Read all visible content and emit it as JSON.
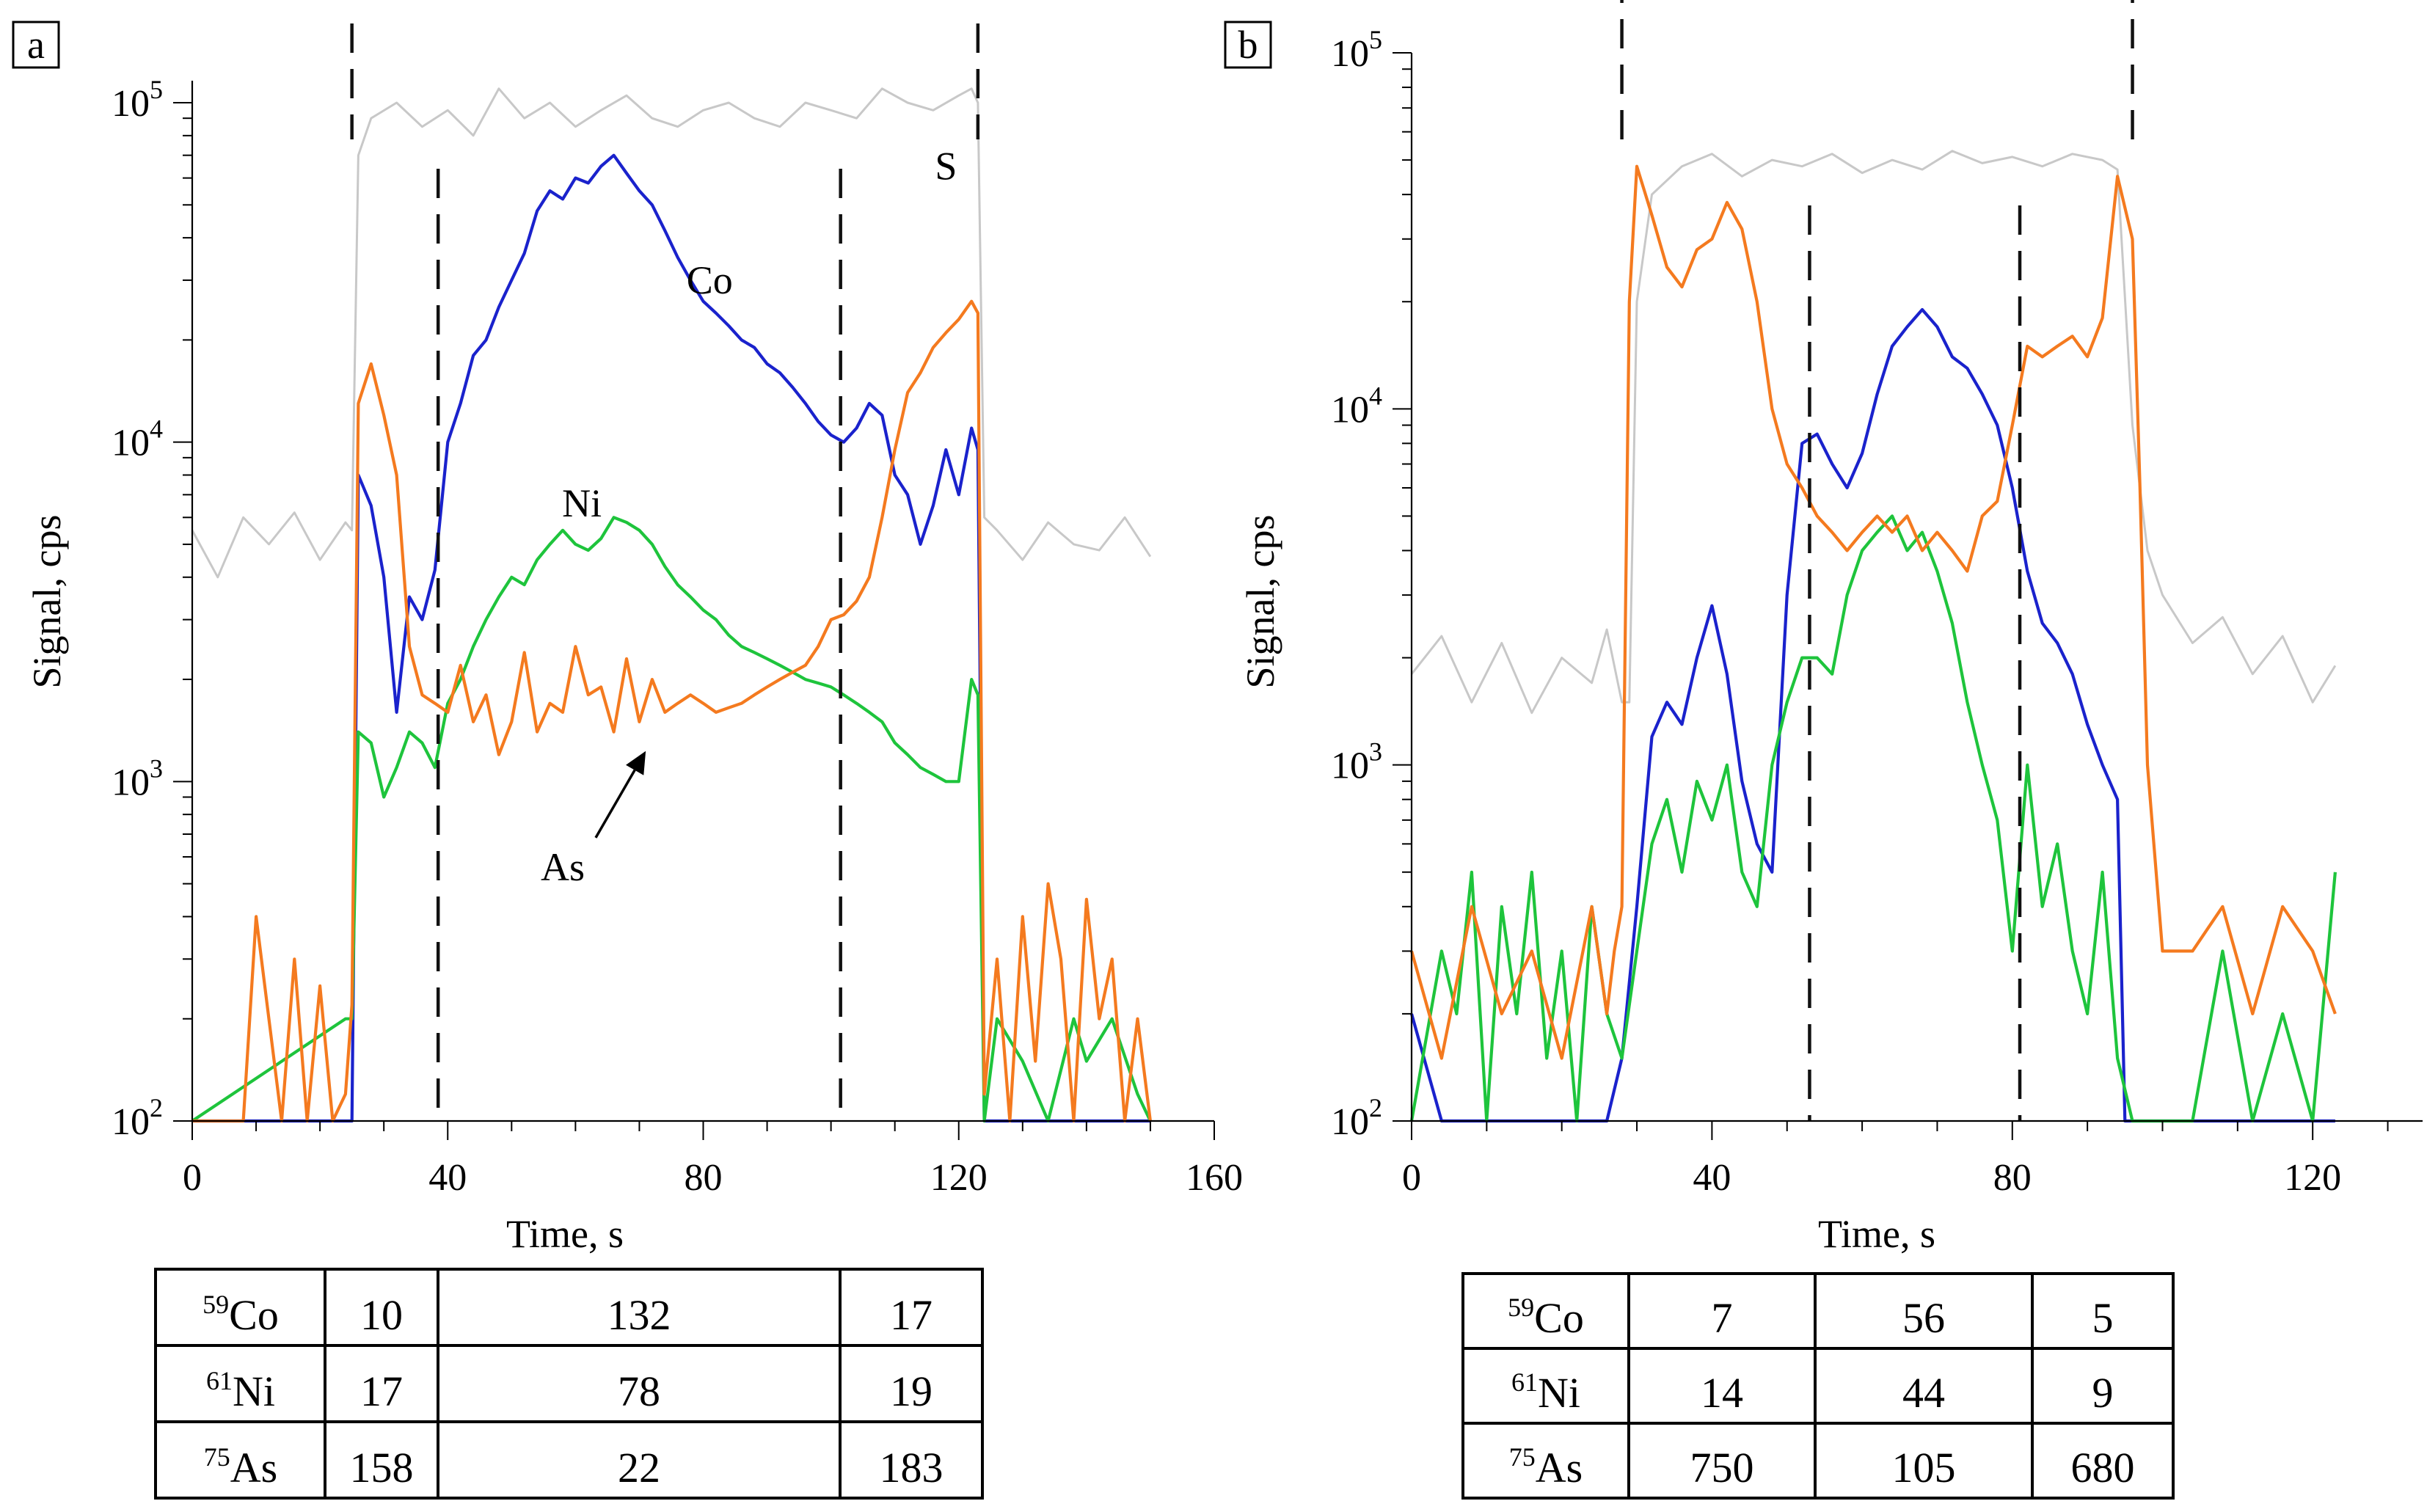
{
  "chart_data": [
    {
      "panel": "a",
      "type": "line",
      "xlabel": "Time, s",
      "ylabel": "Signal, cps",
      "yscale": "log",
      "xlim": [
        0,
        160
      ],
      "ylim": [
        100,
        100000
      ],
      "xticks": [
        0,
        40,
        80,
        120,
        160
      ],
      "xtick_labels": [
        "0",
        "40",
        "80",
        "120",
        "160"
      ],
      "yticks": [
        100,
        1000,
        10000,
        100000
      ],
      "ytick_bases": [
        "10",
        "10",
        "10",
        "10"
      ],
      "ytick_exps": [
        "2",
        "3",
        "4",
        "5"
      ],
      "markers_x": [
        25,
        38.5,
        101.5,
        123
      ],
      "annotations": [
        {
          "label": "S",
          "x": 118,
          "y": 65000
        },
        {
          "label": "Co",
          "x": 81,
          "y": 30000
        },
        {
          "label": "Ni",
          "x": 61,
          "y": 6600
        },
        {
          "label": "As",
          "x": 58,
          "y": 560,
          "arrow_to": [
            71,
            1230
          ]
        }
      ],
      "series": [
        {
          "name": "S",
          "color": "#c8c8c8",
          "x": [
            0,
            4,
            8,
            12,
            16,
            20,
            24,
            25,
            26,
            28,
            32,
            36,
            40,
            44,
            48,
            52,
            56,
            60,
            64,
            68,
            72,
            76,
            80,
            84,
            88,
            92,
            96,
            100,
            104,
            108,
            112,
            116,
            120,
            122,
            123,
            124,
            126,
            130,
            134,
            138,
            142,
            146,
            150
          ],
          "y": [
            5500,
            4000,
            6000,
            5000,
            6200,
            4500,
            5800,
            5500,
            70000,
            90000,
            100000,
            85000,
            95000,
            80000,
            110000,
            90000,
            100000,
            85000,
            95000,
            105000,
            90000,
            85000,
            95000,
            100000,
            90000,
            85000,
            100000,
            95000,
            90000,
            110000,
            100000,
            95000,
            105000,
            110000,
            100000,
            6000,
            5500,
            4500,
            5800,
            5000,
            4800,
            6000,
            4600
          ]
        },
        {
          "name": "Co",
          "color": "#1a22cc",
          "x": [
            0,
            24,
            25,
            26,
            28,
            30,
            32,
            34,
            36,
            38,
            40,
            42,
            44,
            46,
            48,
            50,
            52,
            54,
            56,
            58,
            60,
            62,
            64,
            66,
            68,
            70,
            72,
            74,
            76,
            78,
            80,
            82,
            84,
            86,
            88,
            90,
            92,
            94,
            96,
            98,
            100,
            102,
            104,
            106,
            108,
            110,
            112,
            114,
            116,
            118,
            120,
            122,
            123,
            124,
            126,
            150
          ],
          "y": [
            100,
            100,
            100,
            8000,
            6500,
            4000,
            1600,
            3500,
            3000,
            4200,
            10000,
            13000,
            18000,
            20000,
            25000,
            30000,
            36000,
            48000,
            55000,
            52000,
            60000,
            58000,
            65000,
            70000,
            62000,
            55000,
            50000,
            42000,
            35000,
            30000,
            26000,
            24000,
            22000,
            20000,
            19000,
            17000,
            16000,
            14500,
            13000,
            11500,
            10500,
            10000,
            11000,
            13000,
            12000,
            8000,
            7000,
            5000,
            6500,
            9500,
            7000,
            11000,
            9500,
            100,
            100,
            100
          ]
        },
        {
          "name": "Ni",
          "color": "#1ec43c",
          "x": [
            0,
            24,
            25,
            26,
            28,
            30,
            32,
            34,
            36,
            38,
            40,
            42,
            44,
            46,
            48,
            50,
            52,
            54,
            56,
            58,
            60,
            62,
            64,
            66,
            68,
            70,
            72,
            74,
            76,
            78,
            80,
            82,
            84,
            86,
            88,
            90,
            92,
            94,
            96,
            98,
            100,
            102,
            104,
            106,
            108,
            110,
            112,
            114,
            116,
            118,
            120,
            122,
            123,
            124,
            126,
            130,
            134,
            138,
            140,
            144,
            148,
            150
          ],
          "y": [
            100,
            200,
            200,
            1400,
            1300,
            900,
            1100,
            1400,
            1300,
            1100,
            1700,
            2000,
            2500,
            3000,
            3500,
            4000,
            3800,
            4500,
            5000,
            5500,
            5000,
            4800,
            5200,
            6000,
            5800,
            5500,
            5000,
            4300,
            3800,
            3500,
            3200,
            3000,
            2700,
            2500,
            2400,
            2300,
            2200,
            2100,
            2000,
            1950,
            1900,
            1800,
            1700,
            1600,
            1500,
            1300,
            1200,
            1100,
            1050,
            1000,
            1000,
            2000,
            1800,
            100,
            200,
            150,
            100,
            200,
            150,
            200,
            120,
            100
          ]
        },
        {
          "name": "As",
          "color": "#f47a1f",
          "x": [
            0,
            8,
            10,
            12,
            14,
            16,
            18,
            20,
            22,
            24,
            25,
            26,
            28,
            30,
            32,
            34,
            36,
            38,
            40,
            42,
            44,
            46,
            48,
            50,
            52,
            54,
            56,
            58,
            60,
            62,
            64,
            66,
            68,
            70,
            72,
            74,
            76,
            78,
            80,
            82,
            84,
            86,
            88,
            90,
            92,
            94,
            96,
            98,
            100,
            102,
            104,
            106,
            108,
            110,
            112,
            114,
            116,
            118,
            120,
            122,
            123,
            124,
            126,
            128,
            130,
            132,
            134,
            136,
            138,
            140,
            142,
            144,
            146,
            148,
            150
          ],
          "y": [
            100,
            100,
            400,
            200,
            100,
            300,
            100,
            250,
            100,
            120,
            220,
            13000,
            17000,
            12000,
            8000,
            2500,
            1800,
            1700,
            1600,
            2200,
            1500,
            1800,
            1200,
            1500,
            2400,
            1400,
            1700,
            1600,
            2500,
            1800,
            1900,
            1400,
            2300,
            1500,
            2000,
            1600,
            1700,
            1800,
            1700,
            1600,
            1650,
            1700,
            1800,
            1900,
            2000,
            2100,
            2200,
            2500,
            3000,
            3100,
            3400,
            4000,
            6000,
            9500,
            14000,
            16000,
            19000,
            21000,
            23000,
            26000,
            24000,
            120,
            300,
            100,
            400,
            150,
            500,
            300,
            100,
            450,
            200,
            300,
            100,
            200,
            100
          ]
        }
      ],
      "table": {
        "rows": [
          {
            "mass": "59",
            "element": "Co",
            "values": [
              "10",
              "132",
              "17"
            ]
          },
          {
            "mass": "61",
            "element": "Ni",
            "values": [
              "17",
              "78",
              "19"
            ]
          },
          {
            "mass": "75",
            "element": "As",
            "values": [
              "158",
              "22",
              "183"
            ]
          }
        ]
      }
    },
    {
      "panel": "b",
      "type": "line",
      "xlabel": "Time, s",
      "ylabel": "Signal, cps",
      "yscale": "log",
      "xlim": [
        0,
        132
      ],
      "ylim": [
        100,
        100000
      ],
      "xticks": [
        0,
        40,
        80,
        120
      ],
      "xtick_labels": [
        "0",
        "40",
        "80",
        "120"
      ],
      "yticks": [
        100,
        1000,
        10000,
        100000
      ],
      "ytick_bases": [
        "10",
        "10",
        "10",
        "10"
      ],
      "ytick_exps": [
        "2",
        "3",
        "4",
        "5"
      ],
      "markers_x": [
        28,
        53,
        81,
        96
      ],
      "annotations": [],
      "series": [
        {
          "name": "S",
          "color": "#c8c8c8",
          "x": [
            0,
            4,
            8,
            12,
            16,
            20,
            24,
            26,
            28,
            29,
            30,
            32,
            36,
            40,
            44,
            48,
            52,
            56,
            60,
            64,
            68,
            72,
            76,
            80,
            84,
            88,
            92,
            94,
            96,
            98,
            100,
            104,
            108,
            112,
            116,
            120,
            123
          ],
          "y": [
            1800,
            2300,
            1500,
            2200,
            1400,
            2000,
            1700,
            2400,
            1500,
            1500,
            20000,
            40000,
            48000,
            52000,
            45000,
            50000,
            48000,
            52000,
            46000,
            50000,
            47000,
            53000,
            49000,
            51000,
            48000,
            52000,
            50000,
            47000,
            9000,
            4000,
            3000,
            2200,
            2600,
            1800,
            2300,
            1500,
            1900
          ]
        },
        {
          "name": "Co",
          "color": "#1a22cc",
          "x": [
            0,
            4,
            8,
            12,
            16,
            20,
            24,
            26,
            28,
            30,
            32,
            34,
            36,
            38,
            40,
            42,
            44,
            46,
            48,
            50,
            52,
            54,
            56,
            58,
            60,
            62,
            64,
            66,
            68,
            70,
            72,
            74,
            76,
            78,
            80,
            82,
            84,
            86,
            88,
            90,
            92,
            94,
            95,
            96,
            100,
            110,
            123
          ],
          "y": [
            200,
            100,
            100,
            100,
            100,
            100,
            100,
            100,
            150,
            400,
            1200,
            1500,
            1300,
            2000,
            2800,
            1800,
            900,
            600,
            500,
            3000,
            8000,
            8500,
            7000,
            6000,
            7500,
            11000,
            15000,
            17000,
            19000,
            17000,
            14000,
            13000,
            11000,
            9000,
            6000,
            3500,
            2500,
            2200,
            1800,
            1300,
            1000,
            800,
            100,
            100,
            100,
            100,
            100
          ]
        },
        {
          "name": "Ni",
          "color": "#1ec43c",
          "x": [
            0,
            4,
            6,
            8,
            10,
            12,
            14,
            16,
            18,
            20,
            22,
            24,
            26,
            28,
            30,
            32,
            34,
            36,
            38,
            40,
            42,
            44,
            46,
            48,
            50,
            52,
            54,
            56,
            58,
            60,
            62,
            64,
            66,
            68,
            70,
            72,
            74,
            76,
            78,
            80,
            82,
            84,
            86,
            88,
            90,
            92,
            94,
            96,
            100,
            104,
            108,
            112,
            116,
            120,
            123
          ],
          "y": [
            100,
            300,
            200,
            500,
            100,
            400,
            200,
            500,
            150,
            300,
            100,
            400,
            200,
            150,
            300,
            600,
            800,
            500,
            900,
            700,
            1000,
            500,
            400,
            1000,
            1500,
            2000,
            2000,
            1800,
            3000,
            4000,
            4500,
            5000,
            4000,
            4500,
            3500,
            2500,
            1500,
            1000,
            700,
            300,
            1000,
            400,
            600,
            300,
            200,
            500,
            150,
            100,
            100,
            100,
            300,
            100,
            200,
            100,
            500
          ]
        },
        {
          "name": "As",
          "color": "#f47a1f",
          "x": [
            0,
            4,
            8,
            12,
            16,
            20,
            24,
            26,
            27,
            28,
            29,
            30,
            32,
            34,
            36,
            38,
            40,
            42,
            44,
            46,
            48,
            50,
            52,
            54,
            56,
            58,
            60,
            62,
            64,
            66,
            68,
            70,
            72,
            74,
            76,
            78,
            80,
            82,
            84,
            86,
            88,
            90,
            92,
            94,
            96,
            97,
            98,
            100,
            104,
            108,
            112,
            116,
            120,
            123
          ],
          "y": [
            300,
            150,
            400,
            200,
            300,
            150,
            400,
            200,
            300,
            400,
            20000,
            48000,
            35000,
            25000,
            22000,
            28000,
            30000,
            38000,
            32000,
            20000,
            10000,
            7000,
            6000,
            5000,
            4500,
            4000,
            4500,
            5000,
            4500,
            5000,
            4000,
            4500,
            4000,
            3500,
            5000,
            5500,
            9000,
            15000,
            14000,
            15000,
            16000,
            14000,
            18000,
            45000,
            30000,
            6000,
            1000,
            300,
            300,
            400,
            200,
            400,
            300,
            200
          ]
        }
      ],
      "table": {
        "rows": [
          {
            "mass": "59",
            "element": "Co",
            "values": [
              "7",
              "56",
              "5"
            ]
          },
          {
            "mass": "61",
            "element": "Ni",
            "values": [
              "14",
              "44",
              "9"
            ]
          },
          {
            "mass": "75",
            "element": "As",
            "values": [
              "750",
              "105",
              "680"
            ]
          }
        ]
      }
    }
  ]
}
